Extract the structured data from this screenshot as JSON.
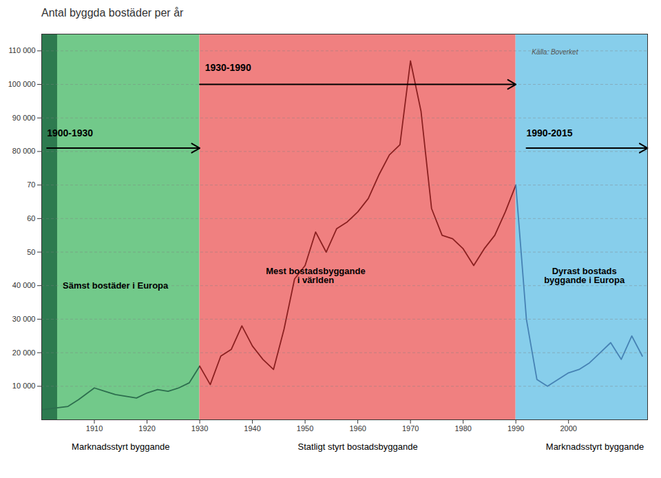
{
  "chart_data": {
    "type": "line",
    "title": "Antal byggda bostäder per år",
    "xlim": [
      1900,
      2015
    ],
    "ylim": [
      0,
      115000
    ],
    "xticks": [
      1910,
      1920,
      1930,
      1940,
      1950,
      1960,
      1970,
      1980,
      1990,
      2000
    ],
    "yticks": [
      {
        "value": 10000,
        "label": "10 000"
      },
      {
        "value": 20000,
        "label": "20 000"
      },
      {
        "value": 30000,
        "label": "30 000"
      },
      {
        "value": 40000,
        "label": "40 000"
      },
      {
        "value": 50000,
        "label": "50"
      },
      {
        "value": 60000,
        "label": "60"
      },
      {
        "value": 70000,
        "label": "70"
      },
      {
        "value": 80000,
        "label": "80 000"
      },
      {
        "value": 90000,
        "label": "90 000"
      },
      {
        "value": 100000,
        "label": "100 000"
      },
      {
        "value": 110000,
        "label": "110 000"
      }
    ],
    "grid": "y",
    "series": [
      {
        "color": "#2d6e4e",
        "x": [
          1900,
          1905,
          1907,
          1910,
          1912,
          1914,
          1916,
          1918,
          1920,
          1922,
          1924,
          1926,
          1928,
          1930
        ],
        "values": [
          3000,
          4000,
          6000,
          9500,
          8500,
          7500,
          7000,
          6500,
          8000,
          9000,
          8500,
          9500,
          11000,
          16000
        ]
      },
      {
        "color": "#8b2020",
        "x": [
          1930,
          1932,
          1934,
          1936,
          1938,
          1940,
          1942,
          1944,
          1946,
          1948,
          1950,
          1952,
          1954,
          1956,
          1958,
          1960,
          1962,
          1964,
          1966,
          1968,
          1970,
          1972,
          1974,
          1976,
          1978,
          1980,
          1982,
          1984,
          1986,
          1988,
          1990
        ],
        "values": [
          16000,
          10500,
          19000,
          21000,
          28000,
          22000,
          18000,
          15000,
          27000,
          42000,
          46000,
          56000,
          50000,
          57000,
          59000,
          62000,
          66000,
          73000,
          79000,
          82000,
          107000,
          92000,
          63000,
          55000,
          54000,
          51000,
          46000,
          51000,
          55000,
          62000,
          70000
        ]
      },
      {
        "color": "#4682b4",
        "x": [
          1990,
          1992,
          1994,
          1996,
          1998,
          2000,
          2002,
          2004,
          2006,
          2008,
          2010,
          2012,
          2014
        ],
        "values": [
          70000,
          30000,
          12000,
          10000,
          12000,
          14000,
          15000,
          17000,
          20000,
          23000,
          18000,
          25000,
          19000
        ]
      }
    ],
    "regions": [
      {
        "x": [
          1900,
          1930
        ],
        "color": "#72c98a"
      },
      {
        "x": [
          1930,
          1990
        ],
        "color": "#f08080"
      },
      {
        "x": [
          1990,
          2015
        ],
        "color": "#87ceeb"
      },
      {
        "x": [
          1900,
          1903
        ],
        "color": "#2d7a4f"
      }
    ],
    "arrows": [
      {
        "x": [
          1901,
          1930
        ],
        "y": 81000,
        "text": "1900-1930",
        "text_x": 1901,
        "text_y": 84500
      },
      {
        "x": [
          1930,
          1990
        ],
        "y": 100000,
        "text": "1930-1990",
        "text_x": 1931,
        "text_y": 104000
      },
      {
        "x": [
          1992,
          2015
        ],
        "y": 81000,
        "text": "1990-2015",
        "text_x": 1992,
        "text_y": 84500
      }
    ],
    "source": {
      "text": "Källa: Boverket",
      "x": 1993,
      "y": 109000
    },
    "region_labels": [
      {
        "text": "Sämst bostäder i Europa",
        "x": 1904,
        "y": 40000
      },
      {
        "text": "Mest bostadsbyggande\ni världen",
        "x": 1952,
        "y": 43000
      },
      {
        "text": "Dyrast bostads\nbyggande i Europa",
        "x": 2003,
        "y": 43000
      }
    ],
    "bottom_labels": [
      {
        "text": "Marknadsstyrt byggande",
        "x": 1915
      },
      {
        "text": "Statligt styrt bostadsbyggande",
        "x": 1960
      },
      {
        "text": "Marknadsstyrt byggande",
        "x": 2005
      }
    ]
  }
}
